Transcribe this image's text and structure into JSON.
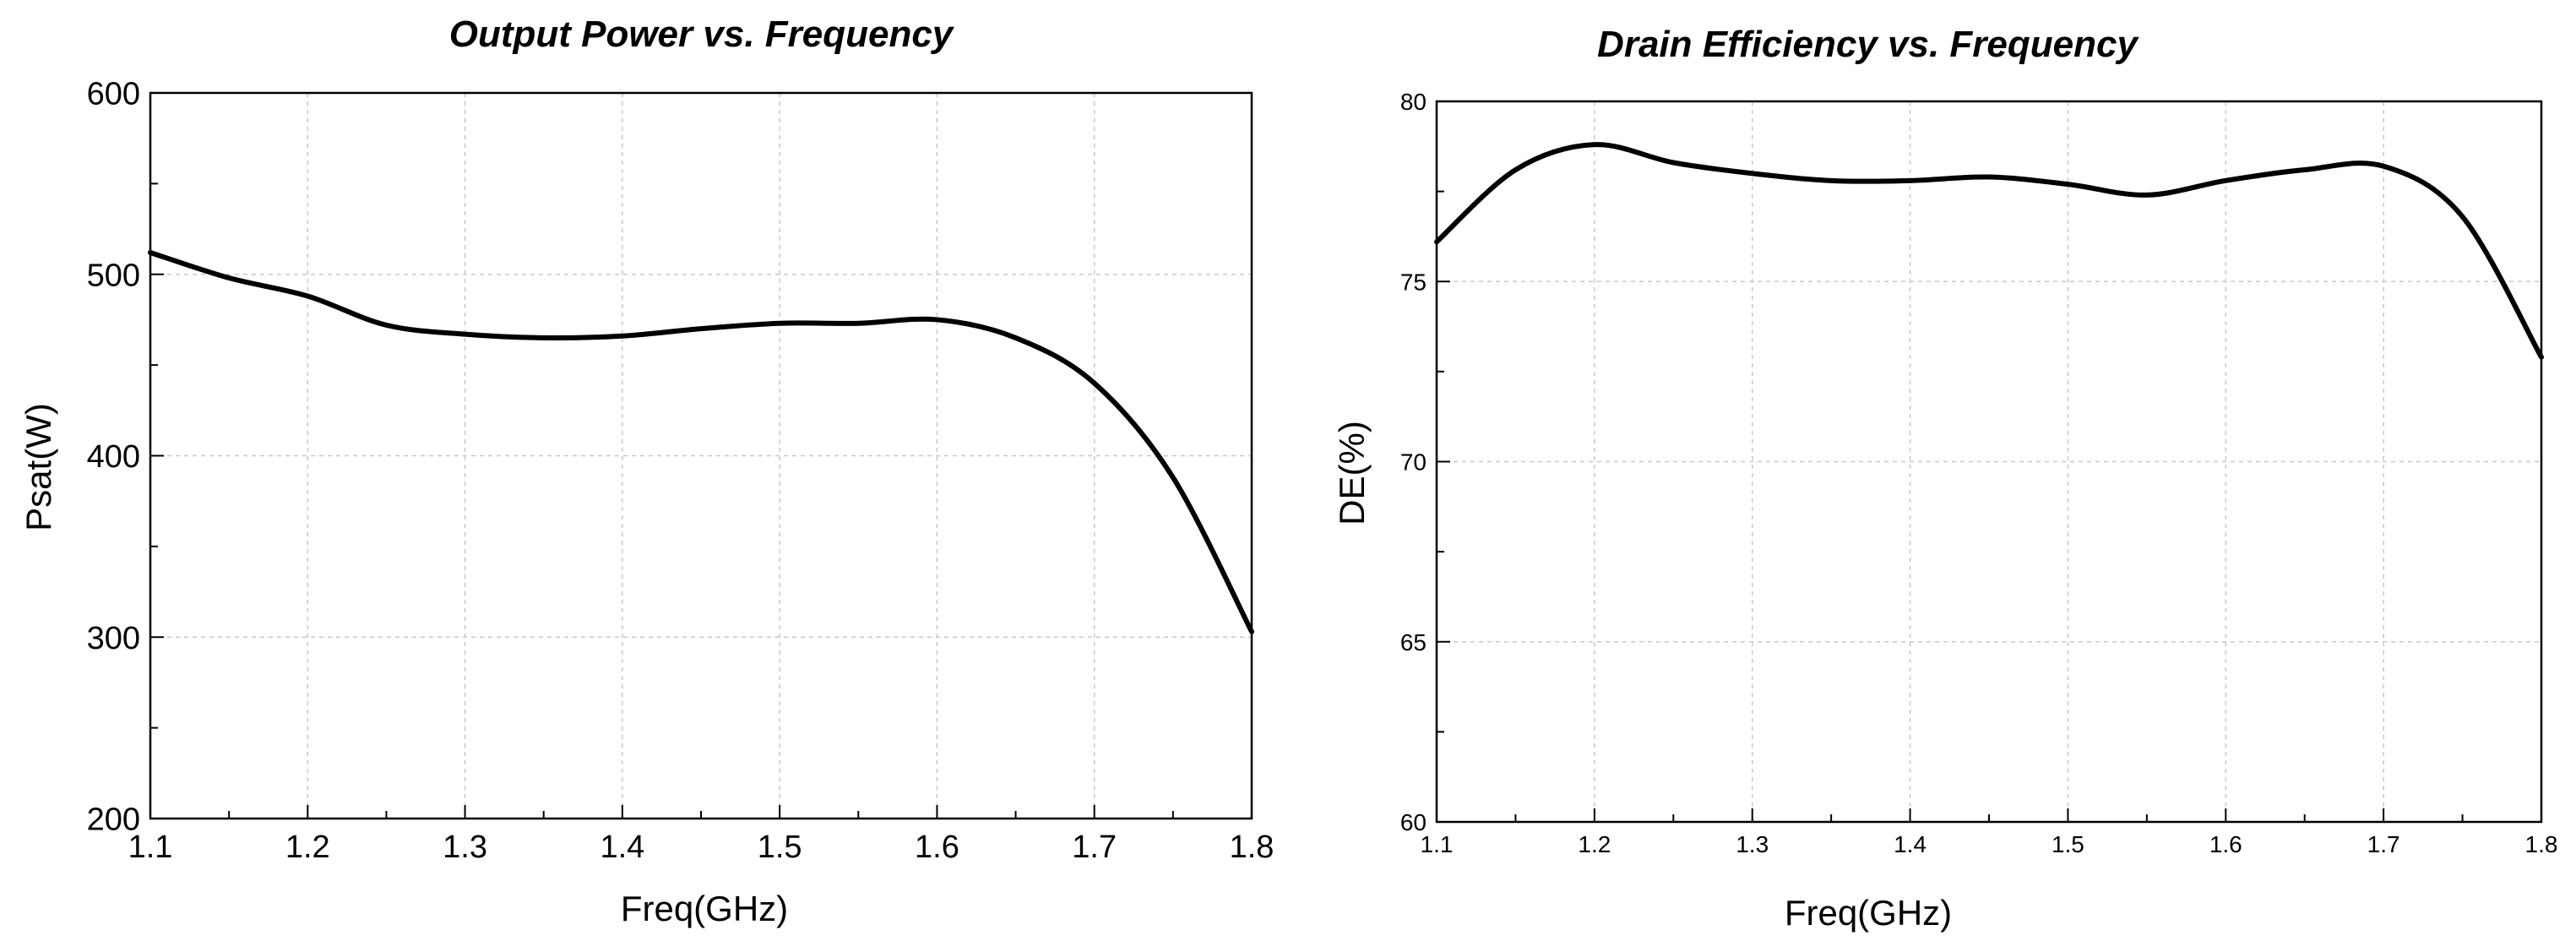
{
  "chart_data": [
    {
      "type": "line",
      "title": "Output Power  vs. Frequency",
      "xlabel": "Freq(GHz)",
      "ylabel": "Psat(W)",
      "xlim": [
        1.1,
        1.8
      ],
      "ylim": [
        200,
        600
      ],
      "xticks": [
        "1.1",
        "1.2",
        "1.3",
        "1.4",
        "1.5",
        "1.6",
        "1.7",
        "1.8"
      ],
      "yticks": [
        "200",
        "300",
        "400",
        "500",
        "600"
      ],
      "grid": true,
      "series": [
        {
          "name": "Psat",
          "x": [
            1.1,
            1.15,
            1.2,
            1.25,
            1.3,
            1.35,
            1.4,
            1.45,
            1.5,
            1.55,
            1.6,
            1.65,
            1.7,
            1.75,
            1.8
          ],
          "y": [
            512,
            498,
            488,
            472,
            467,
            465,
            466,
            470,
            473,
            473,
            475,
            465,
            440,
            388,
            303
          ]
        }
      ]
    },
    {
      "type": "line",
      "title": "Drain Efficiency  vs. Frequency",
      "xlabel": "Freq(GHz)",
      "ylabel": "DE(%)",
      "xlim": [
        1.1,
        1.8
      ],
      "ylim": [
        60,
        80
      ],
      "xticks": [
        "1.1",
        "1.2",
        "1.3",
        "1.4",
        "1.5",
        "1.6",
        "1.7",
        "1.8"
      ],
      "yticks": [
        "60",
        "65",
        "70",
        "75",
        "80"
      ],
      "grid": true,
      "series": [
        {
          "name": "DE",
          "x": [
            1.1,
            1.15,
            1.2,
            1.25,
            1.3,
            1.35,
            1.4,
            1.45,
            1.5,
            1.55,
            1.6,
            1.65,
            1.7,
            1.75,
            1.8
          ],
          "y": [
            76.1,
            78.1,
            78.8,
            78.3,
            78.0,
            77.8,
            77.8,
            77.9,
            77.7,
            77.4,
            77.8,
            78.1,
            78.2,
            76.8,
            72.9
          ]
        }
      ]
    }
  ]
}
